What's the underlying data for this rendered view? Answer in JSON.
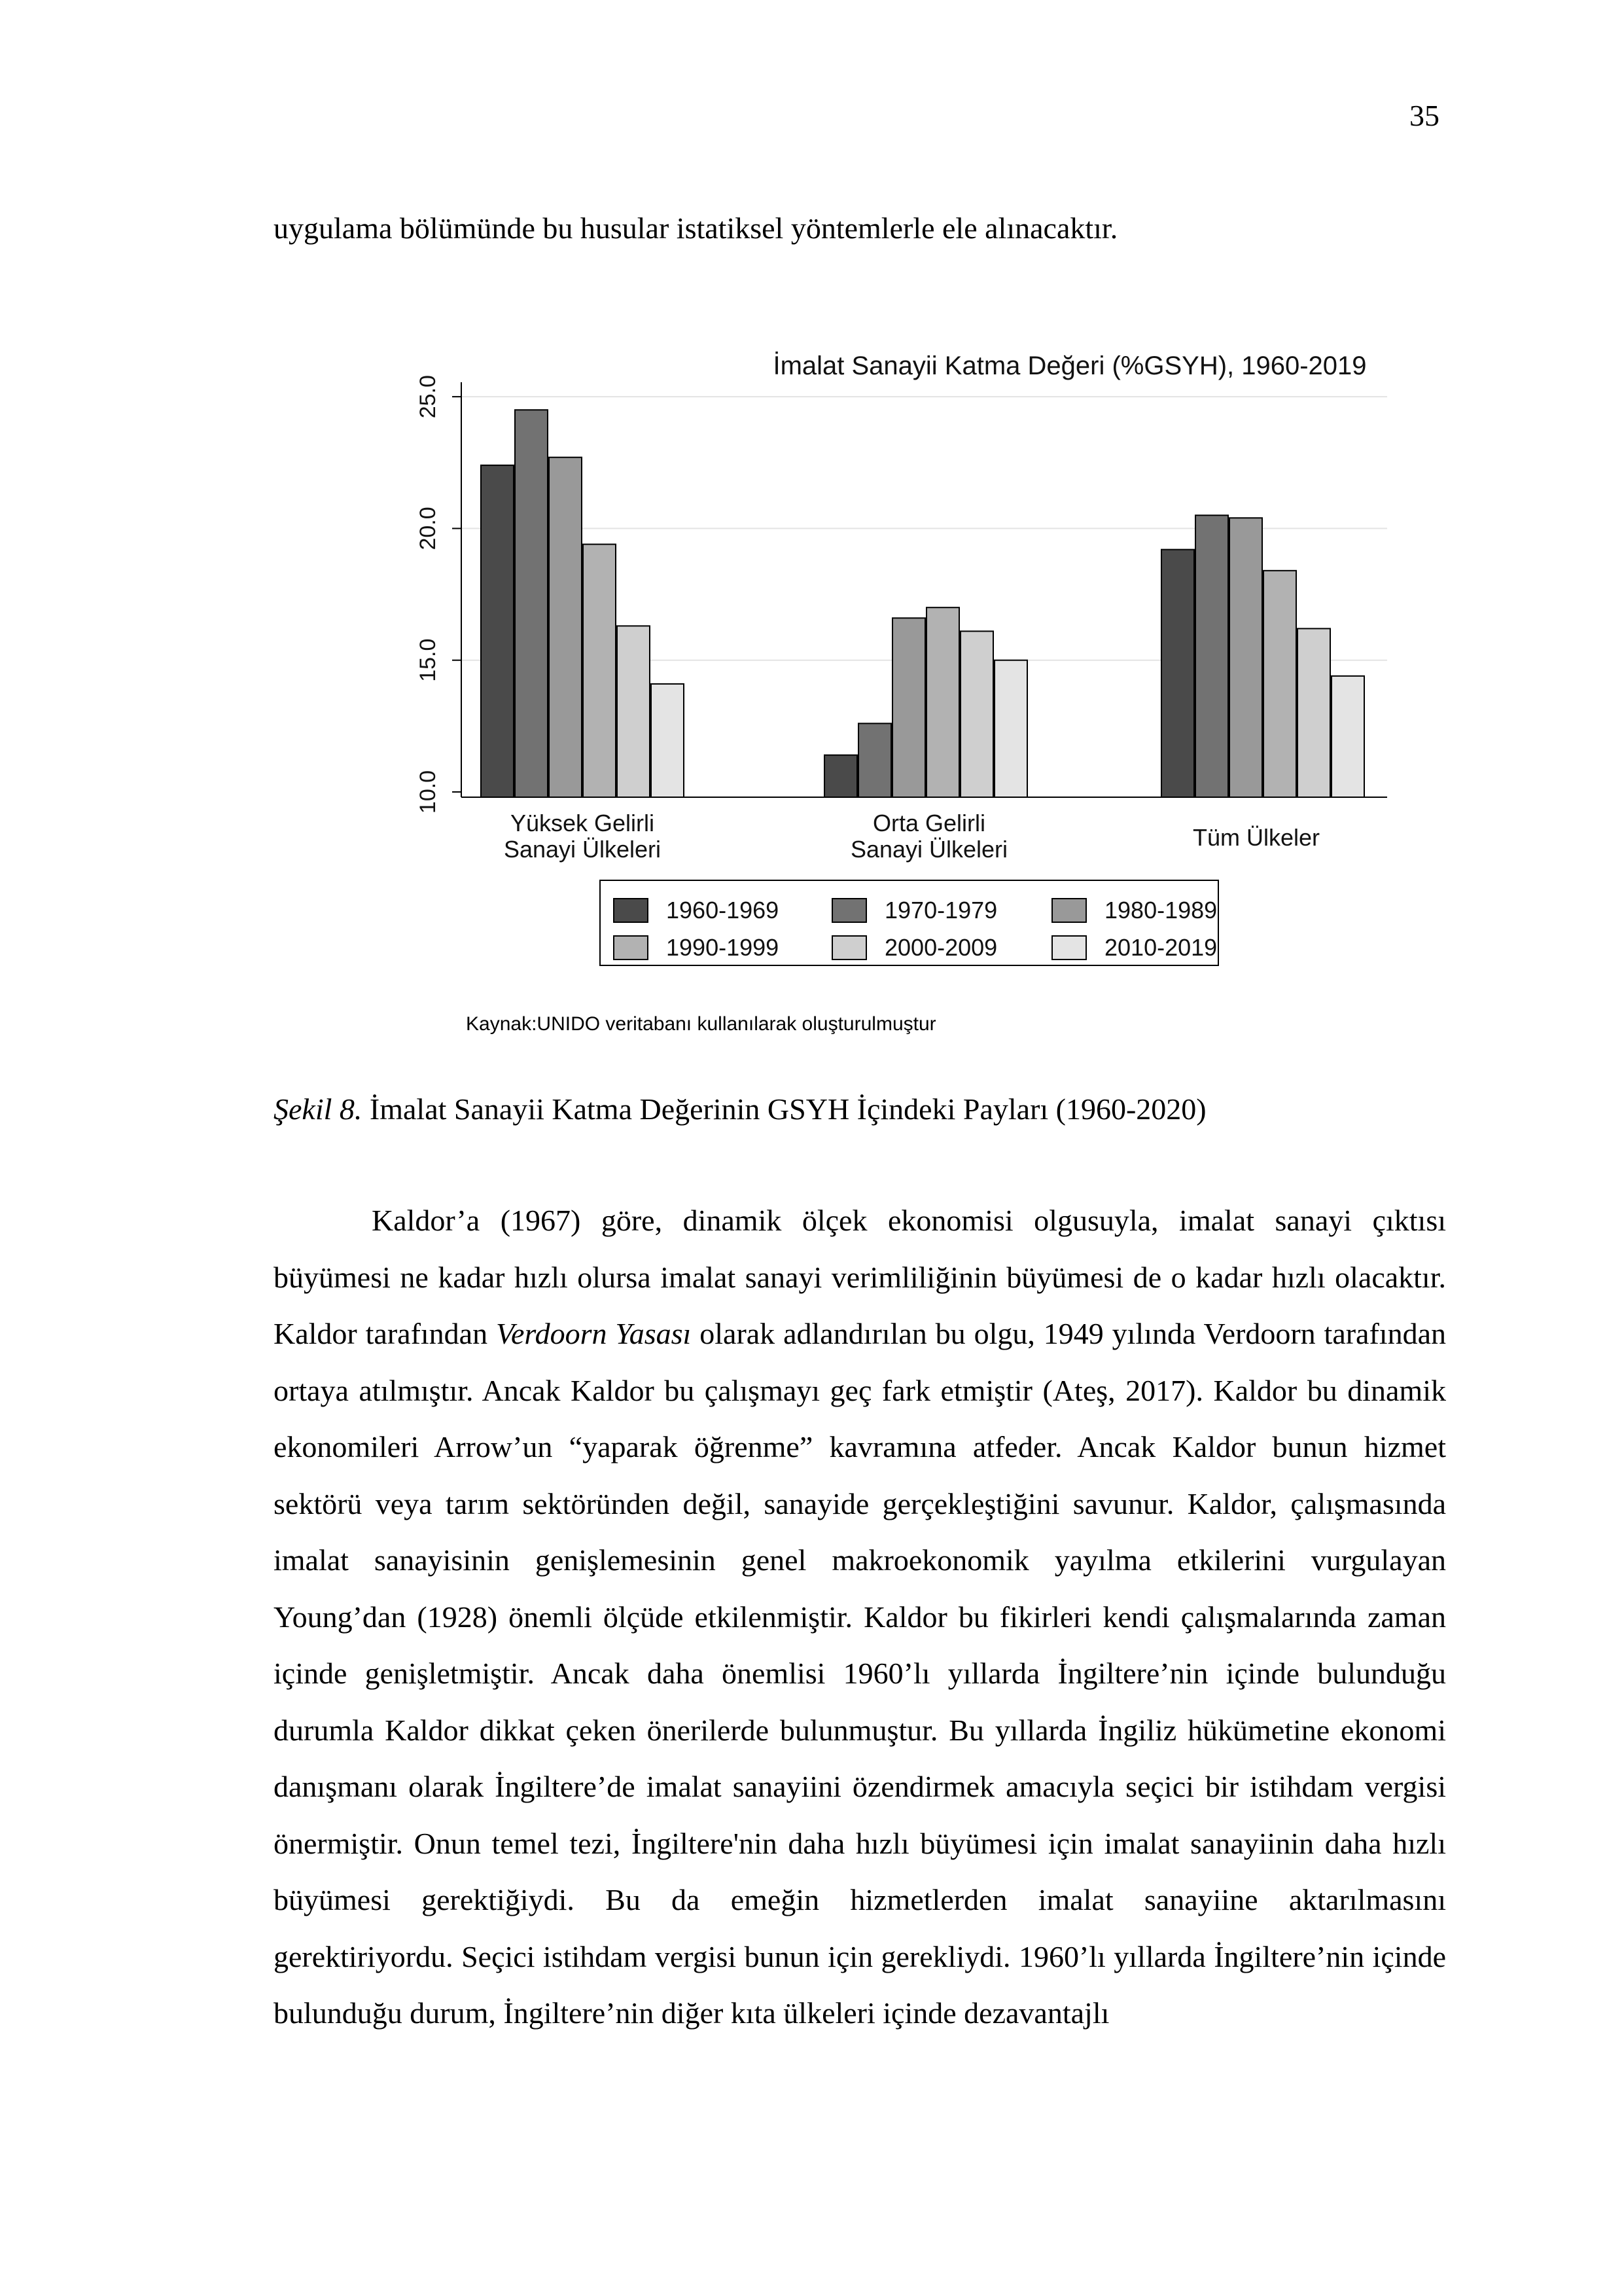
{
  "page": {
    "number": "35",
    "lead_line": "uygulama bölümünde bu husular istatiksel yöntemlerle ele alınacaktır.",
    "source_note": "Kaynak:UNIDO veritabanı kullanılarak oluşturulmuştur",
    "caption_label": "Şekil 8.",
    "caption_text": " İmalat Sanayii Katma Değerinin GSYH İçindeki Payları (1960-2020)",
    "paragraph": {
      "part1": "Kaldor’a (1967) göre, dinamik ölçek ekonomisi olgusuyla, imalat sanayi çıktısı büyümesi ne kadar hızlı olursa imalat sanayi verimliliğinin büyümesi de o kadar hızlı olacaktır.  Kaldor tarafından ",
      "italic": "Verdoorn Yasası",
      "part2": " olarak adlandırılan bu olgu, 1949 yılında Verdoorn tarafından ortaya atılmıştır. Ancak Kaldor bu çalışmayı geç fark etmiştir (Ateş, 2017). Kaldor bu dinamik ekonomileri Arrow’un “yaparak öğrenme” kavramına atfeder. Ancak Kaldor bunun hizmet sektörü veya tarım sektöründen değil, sanayide gerçekleştiğini savunur. Kaldor, çalışmasında imalat sanayisinin genişlemesinin genel makroekonomik yayılma etkilerini vurgulayan Young’dan (1928) önemli ölçüde etkilenmiştir. Kaldor bu fikirleri kendi çalışmalarında zaman içinde genişletmiştir. Ancak daha önemlisi 1960’lı yıllarda İngiltere’nin içinde bulunduğu durumla Kaldor dikkat çeken önerilerde bulunmuştur. Bu yıllarda İngiliz hükümetine ekonomi danışmanı olarak İngiltere’de imalat sanayiini özendirmek amacıyla seçici bir istihdam vergisi önermiştir. Onun temel tezi, İngiltere'nin daha hızlı büyümesi için imalat sanayiinin daha hızlı büyümesi gerektiğiydi. Bu da emeğin hizmetlerden imalat sanayiine aktarılmasını gerektiriyordu. Seçici istihdam vergisi bunun için gerekliydi. 1960’lı yıllarda İngiltere’nin içinde bulunduğu durum, İngiltere’nin diğer kıta ülkeleri içinde dezavantajlı"
    }
  },
  "chart_data": {
    "type": "bar",
    "title": "İmalat Sanayii Katma Değeri (%GSYH), 1960-2019",
    "categories": [
      [
        "Yüksek Gelirli",
        "Sanayi Ülkeleri"
      ],
      [
        "Orta Gelirli",
        "Sanayi Ülkeleri"
      ],
      [
        "Tüm Ülkeler"
      ]
    ],
    "series": [
      {
        "name": "1960-1969",
        "color": "#4a4a4a",
        "values": [
          22.4,
          11.4,
          19.2
        ]
      },
      {
        "name": "1970-1979",
        "color": "#727272",
        "values": [
          24.5,
          12.6,
          20.5
        ]
      },
      {
        "name": "1980-1989",
        "color": "#999999",
        "values": [
          22.7,
          16.6,
          20.4
        ]
      },
      {
        "name": "1990-1999",
        "color": "#b2b2b2",
        "values": [
          19.4,
          17.0,
          18.4
        ]
      },
      {
        "name": "2000-2009",
        "color": "#cfcfcf",
        "values": [
          16.3,
          16.1,
          16.2
        ]
      },
      {
        "name": "2010-2019",
        "color": "#e4e4e4",
        "values": [
          14.1,
          15.0,
          14.4
        ]
      }
    ],
    "ylim": [
      10,
      25.5
    ],
    "yticks": [
      "10.0",
      "15.0",
      "20.0",
      "25.0"
    ],
    "grid": true,
    "legend_position": "bottom"
  }
}
